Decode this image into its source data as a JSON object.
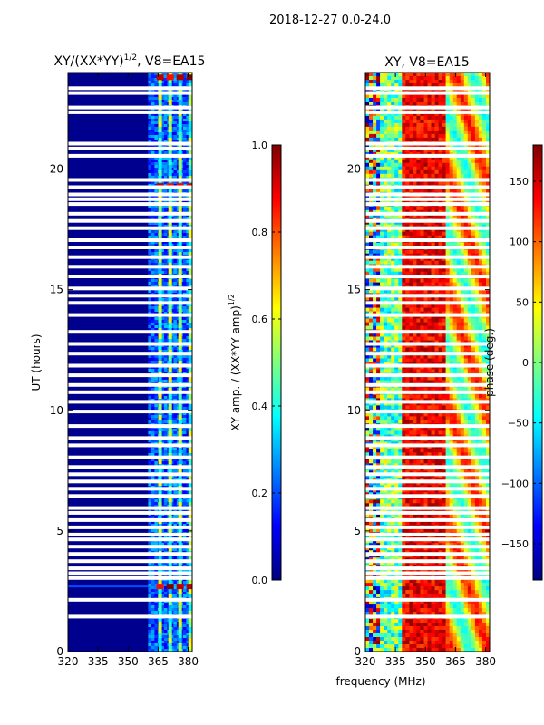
{
  "figure": {
    "suptitle": "2018-12-27 0.0-24.0",
    "shared_xlabel": "frequency (MHz)"
  },
  "colors": {
    "background_blue": "#00008f",
    "gap": "#ffffff",
    "jet_stops": [
      "#00007f",
      "#0000ff",
      "#007fff",
      "#00ffff",
      "#7fff7f",
      "#ffff00",
      "#ff7f00",
      "#ff0000",
      "#7f0000"
    ]
  },
  "chart_data": [
    {
      "type": "heatmap",
      "title_prefix": "XY/(XX*YY)",
      "title_exponent": "1/2",
      "title_suffix": ", V8=EA15",
      "xlabel": "",
      "ylabel": "UT (hours)",
      "xlim": [
        320,
        382
      ],
      "ylim": [
        0,
        24
      ],
      "xticks": [
        320,
        335,
        350,
        365,
        380
      ],
      "yticks": [
        0,
        5,
        10,
        15,
        20
      ],
      "colorbar": {
        "label_prefix": "XY amp. / (XX*YY amp)",
        "label_exponent": "1/2",
        "range": [
          0.0,
          1.0
        ],
        "ticks": [
          "0.0",
          "0.2",
          "0.4",
          "0.6",
          "0.8",
          "1.0"
        ],
        "tick_values": [
          0.0,
          0.2,
          0.4,
          0.6,
          0.8,
          1.0
        ]
      },
      "bright_channels_MHz": [
        366,
        371,
        376,
        381
      ],
      "bright_band_MHz": [
        360,
        382
      ],
      "gap_hours": [
        23.35,
        23.15,
        22.55,
        22.35,
        21.05,
        20.85,
        20.55,
        19.55,
        19.25,
        18.95,
        18.75,
        18.55,
        18.15,
        17.85,
        17.55,
        17.05,
        16.75,
        16.35,
        15.95,
        15.55,
        15.05,
        14.75,
        14.45,
        13.95,
        13.25,
        12.75,
        12.35,
        11.85,
        11.45,
        11.05,
        10.75,
        10.35,
        9.95,
        9.35,
        8.85,
        8.55,
        8.05,
        7.65,
        7.35,
        7.05,
        6.75,
        6.45,
        5.95,
        5.75,
        5.45,
        5.15,
        4.85,
        4.65,
        4.35,
        4.05,
        3.75,
        3.45,
        3.25,
        3.05,
        2.15,
        1.45
      ]
    },
    {
      "type": "heatmap",
      "title": "XY, V8=EA15",
      "xlabel": "frequency (MHz)",
      "ylabel": "",
      "xlim": [
        320,
        382
      ],
      "ylim": [
        0,
        24
      ],
      "xticks": [
        320,
        335,
        350,
        365,
        380
      ],
      "yticks": [
        0,
        5,
        10,
        15,
        20
      ],
      "colorbar": {
        "label": "phase (deg.)",
        "range": [
          -180,
          180
        ],
        "ticks": [
          "−150",
          "−100",
          "−50",
          "0",
          "50",
          "100",
          "150"
        ],
        "tick_values": [
          -150,
          -100,
          -50,
          0,
          50,
          100,
          150
        ]
      },
      "gap_hours": [
        23.35,
        23.15,
        22.55,
        22.35,
        21.05,
        20.85,
        20.55,
        19.55,
        19.25,
        18.95,
        18.75,
        18.55,
        18.15,
        17.85,
        17.55,
        17.05,
        16.75,
        16.35,
        15.95,
        15.55,
        15.05,
        14.75,
        14.45,
        13.95,
        13.25,
        12.75,
        12.35,
        11.85,
        11.45,
        11.05,
        10.75,
        10.35,
        9.95,
        9.35,
        8.85,
        8.55,
        8.05,
        7.65,
        7.35,
        7.05,
        6.75,
        6.45,
        5.95,
        5.75,
        5.45,
        5.15,
        4.85,
        4.65,
        4.35,
        4.05,
        3.75,
        3.45,
        3.25,
        3.05,
        2.15,
        1.45
      ]
    }
  ]
}
